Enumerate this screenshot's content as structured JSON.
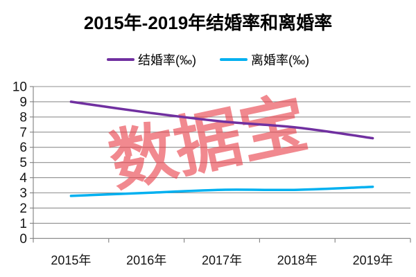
{
  "title": "2015年-2019年结婚率和离婚率",
  "watermark": "数据宝",
  "colors": {
    "marriage_line": "#7030A0",
    "divorce_line": "#00B0F0",
    "watermark": "#E8414B",
    "watermark_opacity": 0.62,
    "gridline": "#8F8F8F",
    "axis": "#7F7F7F",
    "label_text": "#141414"
  },
  "chart_data": {
    "type": "line",
    "title": "2015年-2019年结婚率和离婚率",
    "categories": [
      "2015年",
      "2016年",
      "2017年",
      "2018年",
      "2019年"
    ],
    "series": [
      {
        "name": "结婚率(‰)",
        "values": [
          9.0,
          8.3,
          7.7,
          7.3,
          6.6
        ],
        "color": "#7030A0"
      },
      {
        "name": "离婚率(‰)",
        "values": [
          2.8,
          3.0,
          3.2,
          3.2,
          3.4
        ],
        "color": "#00B0F0"
      }
    ],
    "ylim": [
      0,
      10
    ],
    "ytick_step": 1,
    "grid": "horizontal",
    "legend_position": "top",
    "smooth": true,
    "watermark": "数据宝"
  }
}
